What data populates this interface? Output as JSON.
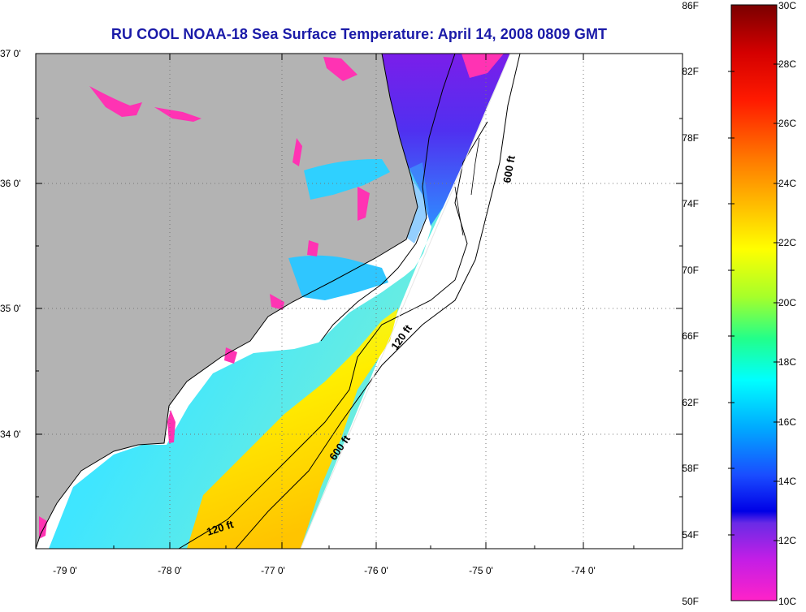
{
  "title": "RU COOL  NOAA-18  Sea Surface Temperature:  April 14, 2008 0809 GMT",
  "map": {
    "lat_ticks": [
      {
        "label": "37 0'",
        "value": 37
      },
      {
        "label": "36 0'",
        "value": 36
      },
      {
        "label": "35 0'",
        "value": 35
      },
      {
        "label": "34 0'",
        "value": 34
      }
    ],
    "lon_ticks": [
      {
        "label": "-79 0'",
        "value": -79
      },
      {
        "label": "-78 0'",
        "value": -78
      },
      {
        "label": "-77 0'",
        "value": -77
      },
      {
        "label": "-76 0'",
        "value": -76
      },
      {
        "label": "-75 0'",
        "value": -75
      },
      {
        "label": "-74 0'",
        "value": -74
      }
    ],
    "contour_labels": [
      {
        "text": "600 ft",
        "position": "offshore-north"
      },
      {
        "text": "120 ft",
        "position": "cape-hatteras-south"
      },
      {
        "text": "600 ft",
        "position": "offshore-south"
      },
      {
        "text": "120 ft",
        "position": "southwest"
      }
    ],
    "colors": {
      "land": "#b3b3b3",
      "no_data": "#ffffff",
      "title": "#1a1aa8"
    }
  },
  "colorbar": {
    "fahrenheit": [
      "86F",
      "82F",
      "78F",
      "74F",
      "70F",
      "66F",
      "62F",
      "58F",
      "54F",
      "50F"
    ],
    "celsius": [
      "30C",
      "28C",
      "26C",
      "24C",
      "22C",
      "20C",
      "18C",
      "16C",
      "14C",
      "12C",
      "10C"
    ]
  }
}
